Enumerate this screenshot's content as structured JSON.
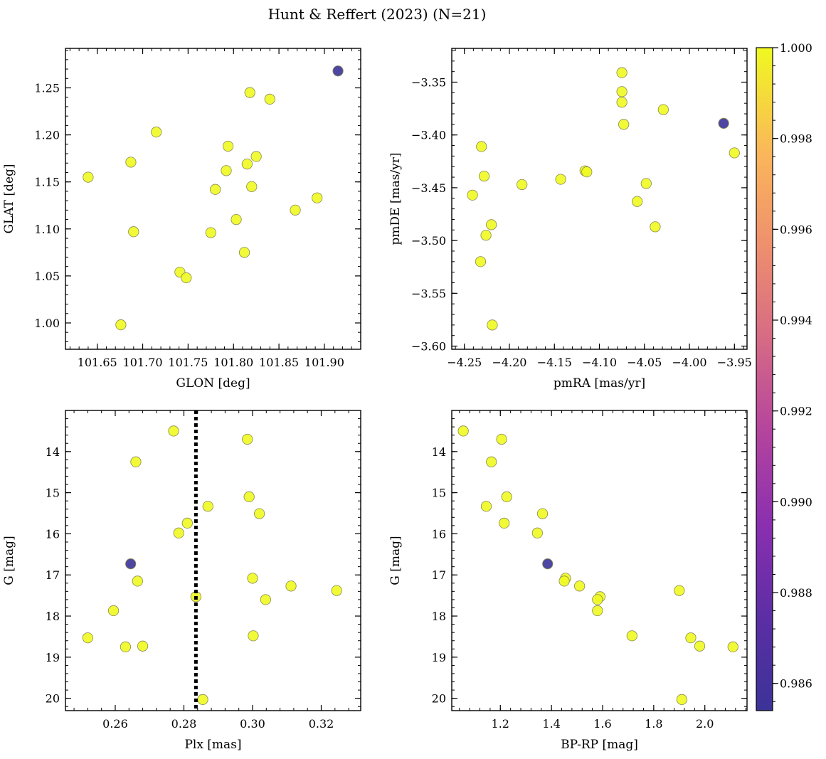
{
  "figure": {
    "title": "Hunt & Reffert (2023) (N=21)"
  },
  "colorbar": {
    "vmin": 0.9854,
    "vmax": 1.0,
    "ticks": [
      0.986,
      0.988,
      0.99,
      0.992,
      0.994,
      0.996,
      0.998,
      1.0
    ],
    "tick_labels": [
      "0.986",
      "0.988",
      "0.990",
      "0.992",
      "0.994",
      "0.996",
      "0.998",
      "1.000"
    ],
    "colormap": "plasma"
  },
  "marker_colors": {
    "high": "#f0f921",
    "low": "#3b3397",
    "edge": "#8a8a50"
  },
  "chart_data": [
    {
      "type": "scatter",
      "xlabel": "GLON [deg]",
      "ylabel": "GLAT [deg]",
      "xlim": [
        101.615,
        101.94
      ],
      "ylim": [
        0.972,
        1.292
      ],
      "yinvert": false,
      "xticks": [
        101.65,
        101.7,
        101.75,
        101.8,
        101.85,
        101.9
      ],
      "xtick_labels": [
        "101.65",
        "101.70",
        "101.75",
        "101.80",
        "101.85",
        "101.90"
      ],
      "yticks": [
        1.0,
        1.05,
        1.1,
        1.15,
        1.2,
        1.25
      ],
      "ytick_labels": [
        "1.00",
        "1.05",
        "1.10",
        "1.15",
        "1.20",
        "1.25"
      ],
      "x": [
        101.915,
        101.64,
        101.676,
        101.687,
        101.69,
        101.715,
        101.741,
        101.748,
        101.775,
        101.78,
        101.792,
        101.794,
        101.803,
        101.812,
        101.815,
        101.818,
        101.82,
        101.825,
        101.84,
        101.868,
        101.892
      ],
      "y": [
        1.268,
        1.155,
        0.998,
        1.171,
        1.097,
        1.203,
        1.054,
        1.048,
        1.096,
        1.142,
        1.162,
        1.188,
        1.11,
        1.075,
        1.169,
        1.245,
        1.145,
        1.177,
        1.238,
        1.12,
        1.133
      ],
      "c": [
        0.9854,
        1,
        1,
        1,
        1,
        1,
        1,
        1,
        1,
        1,
        1,
        1,
        1,
        1,
        1,
        1,
        1,
        1,
        1,
        1,
        1
      ]
    },
    {
      "type": "scatter",
      "xlabel": "pmRA [mas/yr]",
      "ylabel": "pmDE [mas/yr]",
      "xlim": [
        -4.264,
        -3.936
      ],
      "ylim": [
        -3.603,
        -3.318
      ],
      "yinvert": false,
      "xticks": [
        -4.25,
        -4.2,
        -4.15,
        -4.1,
        -4.05,
        -4.0,
        -3.95
      ],
      "xtick_labels": [
        "−4.25",
        "−4.20",
        "−4.15",
        "−4.10",
        "−4.05",
        "−4.00",
        "−3.95"
      ],
      "yticks": [
        -3.6,
        -3.55,
        -3.5,
        -3.45,
        -3.4,
        -3.35
      ],
      "ytick_labels": [
        "−3.60",
        "−3.55",
        "−3.50",
        "−3.45",
        "−3.40",
        "−3.35"
      ],
      "x": [
        -3.962,
        -4.241,
        -4.231,
        -4.228,
        -4.226,
        -4.22,
        -4.219,
        -4.232,
        -4.186,
        -4.143,
        -4.116,
        -4.114,
        -4.075,
        -4.075,
        -4.075,
        -4.073,
        -4.058,
        -4.048,
        -4.038,
        -4.029,
        -3.95
      ],
      "y": [
        -3.389,
        -3.457,
        -3.411,
        -3.439,
        -3.495,
        -3.485,
        -3.58,
        -3.52,
        -3.447,
        -3.442,
        -3.434,
        -3.435,
        -3.341,
        -3.359,
        -3.369,
        -3.39,
        -3.463,
        -3.446,
        -3.487,
        -3.376,
        -3.417
      ],
      "c": [
        0.9854,
        1,
        1,
        1,
        1,
        1,
        1,
        1,
        1,
        1,
        1,
        1,
        1,
        1,
        1,
        1,
        1,
        1,
        1,
        1,
        1
      ]
    },
    {
      "type": "scatter",
      "xlabel": "Plx [mas]",
      "ylabel": "G [mag]",
      "xlim": [
        0.2455,
        0.3315
      ],
      "ylim": [
        13.0,
        20.3
      ],
      "yinvert": true,
      "vline": 0.2835,
      "xticks": [
        0.26,
        0.28,
        0.3,
        0.32
      ],
      "xtick_labels": [
        "0.26",
        "0.28",
        "0.30",
        "0.32"
      ],
      "yticks": [
        14,
        15,
        16,
        17,
        18,
        19,
        20
      ],
      "ytick_labels": [
        "14",
        "15",
        "16",
        "17",
        "18",
        "19",
        "20"
      ],
      "x": [
        0.2645,
        0.252,
        0.2595,
        0.263,
        0.266,
        0.2665,
        0.268,
        0.277,
        0.2785,
        0.281,
        0.2835,
        0.2855,
        0.287,
        0.2985,
        0.299,
        0.3,
        0.3002,
        0.302,
        0.3038,
        0.3112,
        0.3245
      ],
      "y": [
        16.73,
        18.53,
        17.87,
        18.75,
        14.25,
        17.15,
        18.73,
        13.5,
        15.98,
        15.74,
        17.53,
        20.03,
        15.33,
        13.7,
        15.1,
        17.08,
        18.48,
        15.51,
        17.6,
        17.27,
        17.38
      ],
      "c": [
        0.9854,
        1,
        1,
        1,
        1,
        1,
        1,
        1,
        1,
        1,
        1,
        1,
        1,
        1,
        1,
        1,
        1,
        1,
        1,
        1,
        1
      ]
    },
    {
      "type": "scatter",
      "xlabel": "BP-RP [mag]",
      "ylabel": "G [mag]",
      "xlim": [
        1.01,
        2.165
      ],
      "ylim": [
        13.0,
        20.3
      ],
      "yinvert": true,
      "xticks": [
        1.2,
        1.4,
        1.6,
        1.8,
        2.0
      ],
      "xtick_labels": [
        "1.2",
        "1.4",
        "1.6",
        "1.8",
        "2.0"
      ],
      "yticks": [
        14,
        15,
        16,
        17,
        18,
        19,
        20
      ],
      "ytick_labels": [
        "14",
        "15",
        "16",
        "17",
        "18",
        "19",
        "20"
      ],
      "x": [
        1.385,
        1.055,
        1.165,
        1.205,
        1.145,
        1.225,
        1.215,
        1.365,
        1.345,
        1.455,
        1.45,
        1.51,
        1.59,
        1.58,
        1.58,
        1.715,
        1.9,
        1.945,
        1.98,
        2.11,
        1.91
      ],
      "y": [
        16.73,
        13.5,
        14.25,
        13.7,
        15.33,
        15.1,
        15.74,
        15.51,
        15.98,
        17.08,
        17.15,
        17.27,
        17.53,
        17.6,
        17.87,
        18.48,
        17.38,
        18.53,
        18.73,
        18.75,
        20.03
      ],
      "c": [
        0.9854,
        1,
        1,
        1,
        1,
        1,
        1,
        1,
        1,
        1,
        1,
        1,
        1,
        1,
        1,
        1,
        1,
        1,
        1,
        1,
        1
      ]
    }
  ]
}
